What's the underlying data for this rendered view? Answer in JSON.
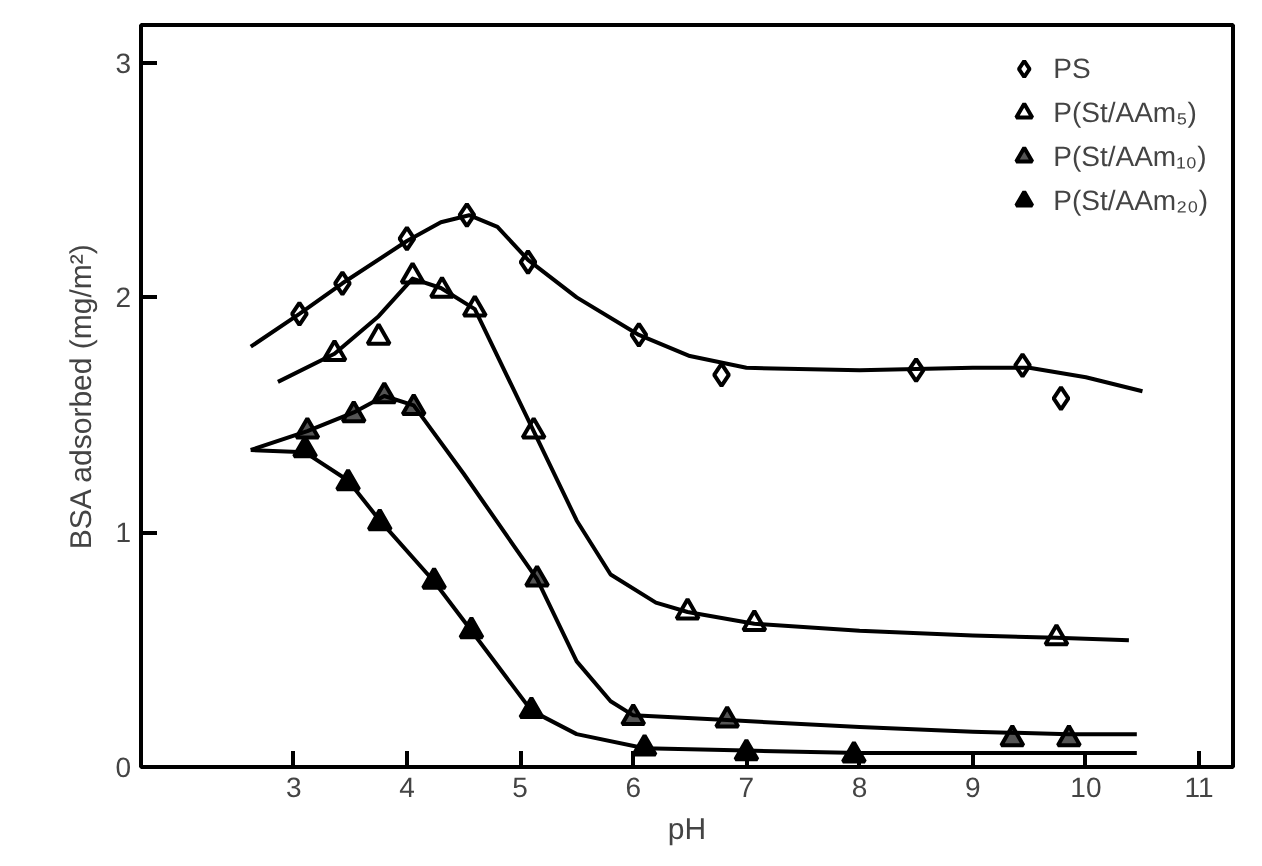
{
  "chart_data": {
    "type": "scatter",
    "xlabel": "pH",
    "ylabel": "BSA adsorbed (mg/m²)",
    "xlim": [
      1.65,
      11.3
    ],
    "ylim": [
      0,
      3.16
    ],
    "xticks": [
      3,
      4,
      5,
      6,
      7,
      8,
      9,
      10,
      11
    ],
    "yticks": [
      0,
      1,
      2,
      3
    ],
    "grid": false,
    "legend": "top right",
    "series": [
      {
        "name": "PS",
        "marker": "diamond",
        "color": "#ffffff",
        "x": [
          3.05,
          3.43,
          4.0,
          4.53,
          5.07,
          6.05,
          6.78,
          8.5,
          9.44,
          9.78
        ],
        "values": [
          1.93,
          2.06,
          2.25,
          2.35,
          2.15,
          1.84,
          1.67,
          1.69,
          1.71,
          1.57
        ]
      },
      {
        "name": "P(St/AAm₅)",
        "marker": "triangle",
        "color": "#ffffff",
        "x": [
          3.36,
          3.75,
          4.05,
          4.31,
          4.6,
          5.12,
          6.48,
          7.07,
          9.74
        ],
        "values": [
          1.76,
          1.83,
          2.09,
          2.03,
          1.95,
          1.43,
          0.66,
          0.61,
          0.55
        ]
      },
      {
        "name": "P(St/AAm₁₀)",
        "marker": "triangle",
        "color": "#555555",
        "x": [
          3.12,
          3.53,
          3.8,
          4.06,
          5.15,
          6.0,
          6.83,
          9.35,
          9.85
        ],
        "values": [
          1.43,
          1.5,
          1.58,
          1.53,
          0.8,
          0.21,
          0.2,
          0.12,
          0.12
        ]
      },
      {
        "name": "P(St/AAm₂₀)",
        "marker": "triangle",
        "color": "#000000",
        "x": [
          3.1,
          3.48,
          3.76,
          4.24,
          4.57,
          5.1,
          6.1,
          7.0,
          7.95
        ],
        "values": [
          1.35,
          1.21,
          1.04,
          0.79,
          0.58,
          0.24,
          0.08,
          0.06,
          0.05
        ]
      },
      {
        "type": "line",
        "color": "#000000",
        "x": [
          2.62,
          3.05,
          3.43,
          4.0,
          4.3,
          4.55,
          4.8,
          5.07,
          5.5,
          6.05,
          6.5,
          7.0,
          8.0,
          9.0,
          9.5,
          10.0,
          10.5
        ],
        "values": [
          1.79,
          1.93,
          2.06,
          2.24,
          2.32,
          2.35,
          2.3,
          2.16,
          2.0,
          1.84,
          1.75,
          1.7,
          1.69,
          1.7,
          1.7,
          1.66,
          1.6
        ]
      },
      {
        "type": "line",
        "color": "#000000",
        "x": [
          2.86,
          3.36,
          3.75,
          4.05,
          4.3,
          4.6,
          5.12,
          5.5,
          5.8,
          6.2,
          6.48,
          7.07,
          8.0,
          9.0,
          9.74,
          10.38
        ],
        "values": [
          1.64,
          1.76,
          1.92,
          2.08,
          2.04,
          1.95,
          1.43,
          1.05,
          0.82,
          0.7,
          0.66,
          0.61,
          0.58,
          0.56,
          0.55,
          0.54
        ]
      },
      {
        "type": "line",
        "color": "#000000",
        "x": [
          2.62,
          3.12,
          3.53,
          3.8,
          4.06,
          4.5,
          5.15,
          5.5,
          5.8,
          6.0,
          6.83,
          8.0,
          9.0,
          9.85,
          10.45
        ],
        "values": [
          1.35,
          1.43,
          1.51,
          1.58,
          1.54,
          1.25,
          0.8,
          0.45,
          0.28,
          0.22,
          0.2,
          0.17,
          0.15,
          0.14,
          0.14
        ]
      },
      {
        "type": "line",
        "color": "#000000",
        "x": [
          2.62,
          3.1,
          3.48,
          3.76,
          4.24,
          4.57,
          5.1,
          5.5,
          6.1,
          7.0,
          8.0,
          9.0,
          10.45
        ],
        "values": [
          1.35,
          1.34,
          1.22,
          1.05,
          0.79,
          0.58,
          0.24,
          0.14,
          0.08,
          0.07,
          0.06,
          0.06,
          0.06
        ]
      }
    ]
  }
}
